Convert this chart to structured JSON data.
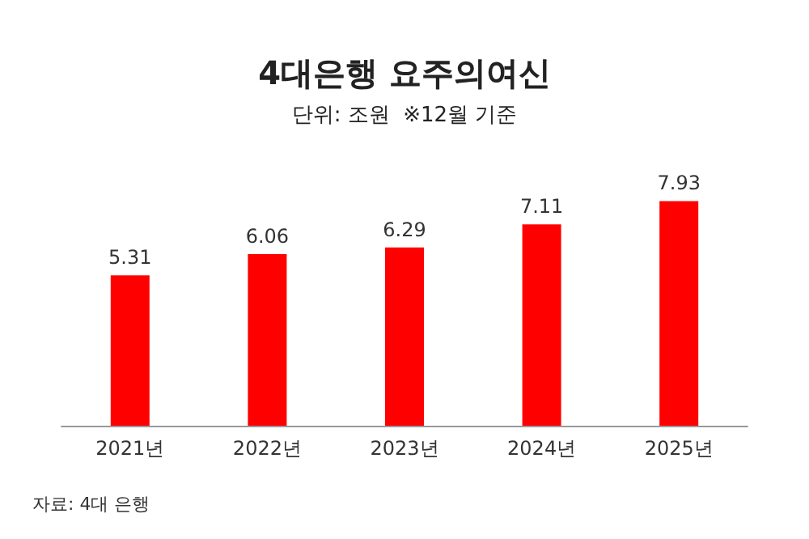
{
  "chart_data": {
    "type": "bar",
    "title": "4대은행 요주의여신",
    "subtitle": "단위: 조원  ※12월 기준",
    "categories": [
      "2021년",
      "2022년",
      "2023년",
      "2024년",
      "2025년"
    ],
    "values": [
      5.31,
      6.06,
      6.29,
      7.11,
      7.93
    ],
    "color": "#ff0000",
    "data_labels": true,
    "annotations": [
      "자료: 4대 은행"
    ]
  }
}
